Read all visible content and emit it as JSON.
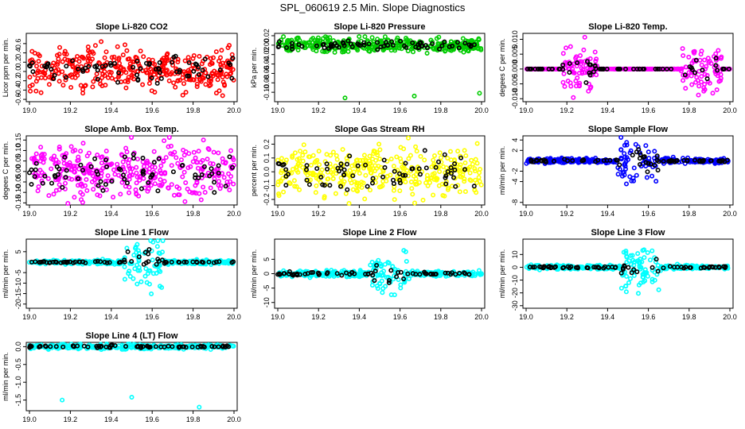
{
  "figure_title": "SPL_060619  2.5 Min. Slope Diagnostics",
  "colors": {
    "red": "#ff0000",
    "green": "#00cc00",
    "magenta": "#ff00ff",
    "yellow": "#ffff00",
    "blue": "#0000ff",
    "cyan": "#00ffff",
    "black": "#000000"
  },
  "chart_data": [
    {
      "id": "co2",
      "type": "scatter",
      "title": "Slope Li-820 CO2",
      "ylabel": "Licor ppm per min.",
      "xlim": [
        19.0,
        20.0
      ],
      "ylim": [
        -0.65,
        0.82
      ],
      "xticks": [
        "19.0",
        "19.2",
        "19.4",
        "19.6",
        "19.8",
        "20.0"
      ],
      "yticks": [
        "-0.6",
        "-0.4",
        "-0.2",
        "0.0",
        "0.2",
        "0.4",
        "0.6"
      ],
      "ytick_values": [
        -0.6,
        -0.4,
        -0.2,
        0.0,
        0.2,
        0.4,
        0.6
      ],
      "series": [
        {
          "name": "all",
          "color": "red",
          "center": 0.05,
          "spread": 0.55
        },
        {
          "name": "selected",
          "color": "black",
          "center": 0.05,
          "spread": 0.35
        }
      ]
    },
    {
      "id": "pressure",
      "type": "scatter",
      "title": "Slope Li-820 Pressure",
      "ylabel": "kPa per min.",
      "xlim": [
        19.0,
        20.0
      ],
      "ylim": [
        -0.12,
        0.025
      ],
      "xticks": [
        "19.0",
        "19.2",
        "19.4",
        "19.6",
        "19.8",
        "20.0"
      ],
      "yticks": [
        "-0.10",
        "-0.08",
        "-0.06",
        "-0.04",
        "-0.02",
        "0.00",
        "0.02"
      ],
      "ytick_values": [
        -0.1,
        -0.08,
        -0.06,
        -0.04,
        -0.02,
        0.0,
        0.02
      ],
      "series": [
        {
          "name": "all",
          "color": "green",
          "center": 0.0,
          "spread": 0.018
        },
        {
          "name": "selected",
          "color": "black",
          "center": 0.0,
          "spread": 0.01
        }
      ],
      "outliers": [
        {
          "x": 19.33,
          "y": -0.112
        },
        {
          "x": 19.67,
          "y": -0.108
        },
        {
          "x": 19.99,
          "y": -0.102
        }
      ]
    },
    {
      "id": "temp820",
      "type": "scatter",
      "title": "Slope Li-820 Temp.",
      "ylabel": "degees C per min.",
      "xlim": [
        19.0,
        20.0
      ],
      "ylim": [
        -0.011,
        0.012
      ],
      "xticks": [
        "19.0",
        "19.2",
        "19.4",
        "19.6",
        "19.8",
        "20.0"
      ],
      "yticks": [
        "-0.010",
        "-0.005",
        "0.000",
        "0.005",
        "0.010"
      ],
      "ytick_values": [
        -0.01,
        -0.005,
        0.0,
        0.005,
        0.01
      ],
      "series": [
        {
          "name": "all",
          "color": "magenta",
          "center": 0.0,
          "spread": 0.0
        },
        {
          "name": "selected",
          "color": "black",
          "center": 0.0,
          "spread": 0.0
        }
      ],
      "bursts": [
        {
          "x0": 19.18,
          "x1": 19.35,
          "spread": 0.009
        },
        {
          "x0": 19.76,
          "x1": 19.96,
          "spread": 0.01
        }
      ]
    },
    {
      "id": "ambbox",
      "type": "scatter",
      "title": "Slope Amb. Box Temp.",
      "ylabel": "degees C per min.",
      "xlim": [
        19.0,
        20.0
      ],
      "ylim": [
        -0.16,
        0.17
      ],
      "xticks": [
        "19.0",
        "19.2",
        "19.4",
        "19.6",
        "19.8",
        "20.0"
      ],
      "yticks": [
        "-0.15",
        "-0.10",
        "-0.05",
        "0.00",
        "0.05",
        "0.10",
        "0.15"
      ],
      "ytick_values": [
        -0.15,
        -0.1,
        -0.05,
        0.0,
        0.05,
        0.1,
        0.15
      ],
      "series": [
        {
          "name": "all",
          "color": "magenta",
          "center": 0.0,
          "spread": 0.15
        },
        {
          "name": "selected",
          "color": "black",
          "center": 0.0,
          "spread": 0.1
        }
      ]
    },
    {
      "id": "rh",
      "type": "scatter",
      "title": "Slope Gas Stream RH",
      "ylabel": "percent per min.",
      "xlim": [
        19.0,
        20.0
      ],
      "ylim": [
        -0.24,
        0.26
      ],
      "xticks": [
        "19.0",
        "19.2",
        "19.4",
        "19.6",
        "19.8",
        "20.0"
      ],
      "yticks": [
        "-0.2",
        "-0.1",
        "0.0",
        "0.1",
        "0.2"
      ],
      "ytick_values": [
        -0.2,
        -0.1,
        0.0,
        0.1,
        0.2
      ],
      "series": [
        {
          "name": "all",
          "color": "yellow",
          "center": 0.0,
          "spread": 0.22
        },
        {
          "name": "selected",
          "color": "black",
          "center": 0.0,
          "spread": 0.15
        }
      ]
    },
    {
      "id": "sampleflow",
      "type": "scatter",
      "title": "Slope Sample Flow",
      "ylabel": "ml/min per min.",
      "xlim": [
        19.0,
        20.0
      ],
      "ylim": [
        -8.5,
        4.8
      ],
      "xticks": [
        "19.0",
        "19.2",
        "19.4",
        "19.6",
        "19.8",
        "20.0"
      ],
      "yticks": [
        "-8",
        "-4",
        "-2",
        "2",
        "4"
      ],
      "ytick_values": [
        -8,
        -4,
        -2,
        2,
        4
      ],
      "series": [
        {
          "name": "all",
          "color": "blue",
          "center": 0.0,
          "spread": 0.6
        },
        {
          "name": "selected",
          "color": "black",
          "center": 0.0,
          "spread": 0.3
        }
      ],
      "bursts": [
        {
          "x0": 19.45,
          "x1": 19.65,
          "spread": 5.0
        }
      ]
    },
    {
      "id": "line1",
      "type": "scatter",
      "title": "Slope Line 1 Flow",
      "ylabel": "ml/min per min.",
      "xlim": [
        19.0,
        20.0
      ],
      "ylim": [
        -22,
        11
      ],
      "xticks": [
        "19.0",
        "19.2",
        "19.4",
        "19.6",
        "19.8",
        "20.0"
      ],
      "yticks": [
        "-20",
        "-15",
        "-10",
        "-5",
        "5"
      ],
      "ytick_values": [
        -20,
        -15,
        -10,
        -5,
        5
      ],
      "series": [
        {
          "name": "all",
          "color": "cyan",
          "center": 0.0,
          "spread": 1.2
        },
        {
          "name": "selected",
          "color": "black",
          "center": 0.0,
          "spread": 0.5
        }
      ],
      "bursts": [
        {
          "x0": 19.46,
          "x1": 19.66,
          "spread": 14.0
        }
      ]
    },
    {
      "id": "line2",
      "type": "scatter",
      "title": "Slope Line 2 Flow",
      "ylabel": "ml/min per min.",
      "xlim": [
        19.0,
        20.0
      ],
      "ylim": [
        -12,
        12
      ],
      "xticks": [
        "19.0",
        "19.2",
        "19.4",
        "19.6",
        "19.8",
        "20.0"
      ],
      "yticks": [
        "-10",
        "-5",
        "0",
        "5"
      ],
      "ytick_values": [
        -10,
        -5,
        0,
        5
      ],
      "series": [
        {
          "name": "all",
          "color": "cyan",
          "center": 0.0,
          "spread": 1.2
        },
        {
          "name": "selected",
          "color": "black",
          "center": 0.0,
          "spread": 0.6
        }
      ],
      "bursts": [
        {
          "x0": 19.45,
          "x1": 19.65,
          "spread": 9.0
        }
      ]
    },
    {
      "id": "line3",
      "type": "scatter",
      "title": "Slope Line 3 Flow",
      "ylabel": "ml/min per min.",
      "xlim": [
        19.0,
        20.0
      ],
      "ylim": [
        -32,
        22
      ],
      "xticks": [
        "19.0",
        "19.2",
        "19.4",
        "19.6",
        "19.8",
        "20.0"
      ],
      "yticks": [
        "-30",
        "-20",
        "-10",
        "0",
        "10"
      ],
      "ytick_values": [
        -30,
        -20,
        -10,
        0,
        10
      ],
      "series": [
        {
          "name": "all",
          "color": "cyan",
          "center": 0.0,
          "spread": 2.0
        },
        {
          "name": "selected",
          "color": "black",
          "center": 0.0,
          "spread": 1.0
        }
      ],
      "bursts": [
        {
          "x0": 19.46,
          "x1": 19.66,
          "spread": 20.0
        }
      ]
    },
    {
      "id": "line4",
      "type": "scatter",
      "title": "Slope Line 4 (LT) Flow",
      "ylabel": "ml/min per min.",
      "xlim": [
        19.0,
        20.0
      ],
      "ylim": [
        -1.8,
        0.12
      ],
      "xticks": [
        "19.0",
        "19.2",
        "19.4",
        "19.6",
        "19.8",
        "20.0"
      ],
      "yticks": [
        "-1.5",
        "-1.0",
        "-0.5",
        "0.0"
      ],
      "ytick_values": [
        -1.5,
        -1.0,
        -0.5,
        0.0
      ],
      "series": [
        {
          "name": "all",
          "color": "cyan",
          "center": 0.0,
          "spread": 0.08
        },
        {
          "name": "selected",
          "color": "black",
          "center": 0.0,
          "spread": 0.04
        }
      ],
      "outliers": [
        {
          "x": 19.16,
          "y": -1.5
        },
        {
          "x": 19.5,
          "y": -1.42
        },
        {
          "x": 19.83,
          "y": -1.7
        }
      ]
    }
  ]
}
